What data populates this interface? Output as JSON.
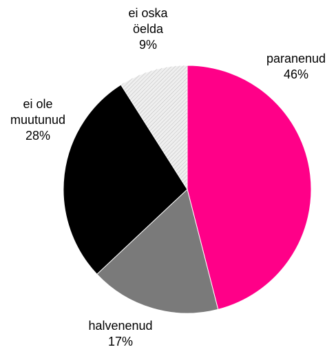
{
  "chart_data": {
    "type": "pie",
    "categories": [
      "paranenud",
      "halvenenud",
      "ei ole muutunud",
      "ei oska öelda"
    ],
    "values": [
      46,
      17,
      28,
      9
    ],
    "value_labels": [
      "46%",
      "17%",
      "28%",
      "9%"
    ],
    "colors": [
      "#ff0088",
      "#7a7a7a",
      "#000000",
      "#efefef"
    ]
  }
}
